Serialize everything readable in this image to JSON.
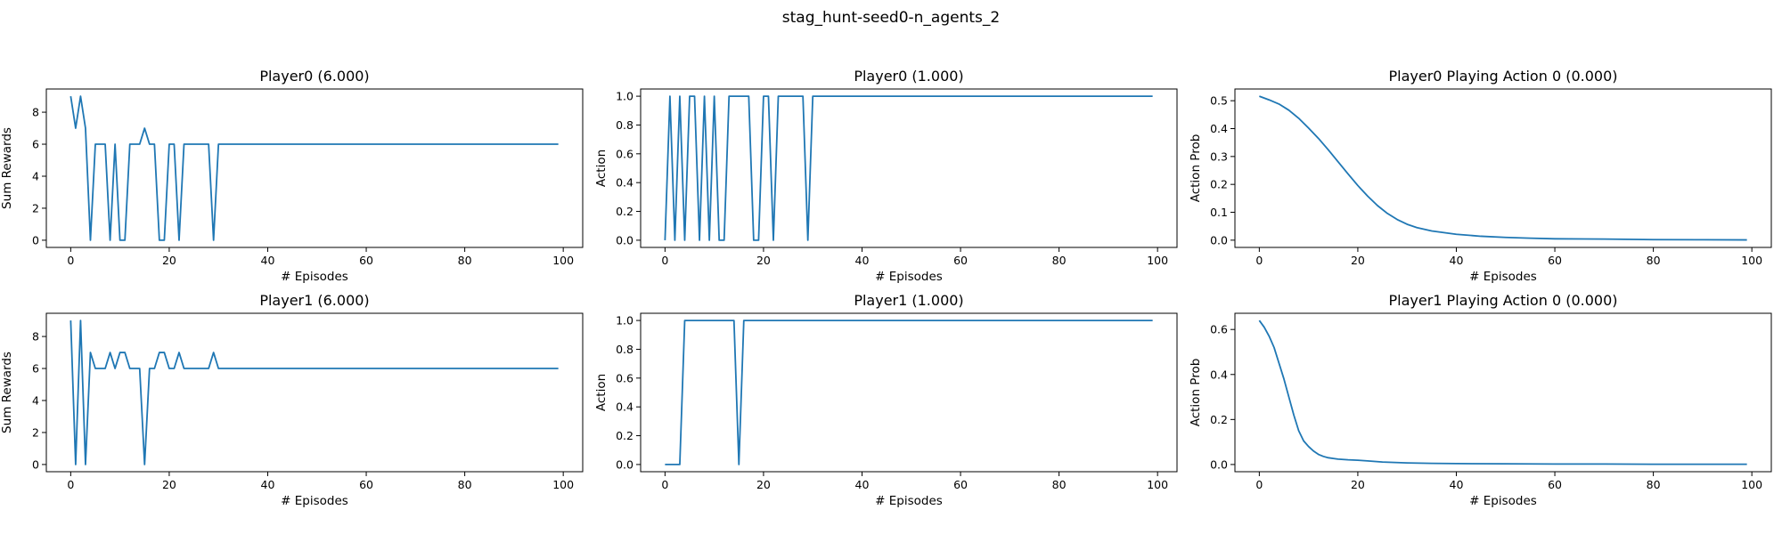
{
  "figure": {
    "suptitle": "stag_hunt-seed0-n_agents_2"
  },
  "chart_data": [
    {
      "type": "line",
      "title": "Player0 (6.000)",
      "xlabel": "# Episodes",
      "ylabel": "Sum Rewards",
      "xlim": [
        -4.95,
        103.95
      ],
      "ylim": [
        -0.45,
        9.45
      ],
      "xticks": [
        0,
        20,
        40,
        60,
        80,
        100
      ],
      "yticks": [
        0,
        2,
        4,
        6,
        8
      ],
      "xtick_labels": [
        "0",
        "20",
        "40",
        "60",
        "80",
        "100"
      ],
      "ytick_labels": [
        "0",
        "2",
        "4",
        "6",
        "8"
      ],
      "series": [
        {
          "x": [
            0,
            1,
            2,
            3,
            4,
            5,
            6,
            7,
            8,
            9,
            10,
            11,
            12,
            13,
            14,
            15,
            16,
            17,
            18,
            19,
            20,
            21,
            22,
            23,
            24,
            25,
            26,
            27,
            28,
            29,
            30,
            35,
            40,
            45,
            50,
            55,
            60,
            65,
            70,
            75,
            80,
            85,
            90,
            95,
            99
          ],
          "y": [
            9,
            7,
            9,
            7,
            0,
            6,
            6,
            6,
            0,
            6,
            0,
            0,
            6,
            6,
            6,
            7,
            6,
            6,
            0,
            0,
            6,
            6,
            0,
            6,
            6,
            6,
            6,
            6,
            6,
            0,
            6,
            6,
            6,
            6,
            6,
            6,
            6,
            6,
            6,
            6,
            6,
            6,
            6,
            6,
            6
          ]
        }
      ]
    },
    {
      "type": "line",
      "title": "Player0 (1.000)",
      "xlabel": "# Episodes",
      "ylabel": "Action",
      "xlim": [
        -4.95,
        103.95
      ],
      "ylim": [
        -0.05,
        1.05
      ],
      "xticks": [
        0,
        20,
        40,
        60,
        80,
        100
      ],
      "yticks": [
        0.0,
        0.2,
        0.4,
        0.6,
        0.8,
        1.0
      ],
      "xtick_labels": [
        "0",
        "20",
        "40",
        "60",
        "80",
        "100"
      ],
      "ytick_labels": [
        "0.0",
        "0.2",
        "0.4",
        "0.6",
        "0.8",
        "1.0"
      ],
      "series": [
        {
          "x": [
            0,
            1,
            2,
            3,
            4,
            5,
            6,
            7,
            8,
            9,
            10,
            11,
            12,
            13,
            14,
            15,
            16,
            17,
            18,
            19,
            20,
            21,
            22,
            23,
            24,
            25,
            26,
            27,
            28,
            29,
            30,
            35,
            40,
            45,
            50,
            55,
            60,
            65,
            70,
            75,
            80,
            85,
            90,
            95,
            99
          ],
          "y": [
            0,
            1,
            0,
            1,
            0,
            1,
            1,
            0,
            1,
            0,
            1,
            0,
            0,
            1,
            1,
            1,
            1,
            1,
            0,
            0,
            1,
            1,
            0,
            1,
            1,
            1,
            1,
            1,
            1,
            0,
            1,
            1,
            1,
            1,
            1,
            1,
            1,
            1,
            1,
            1,
            1,
            1,
            1,
            1,
            1
          ]
        }
      ]
    },
    {
      "type": "line",
      "title": "Player0 Playing Action 0 (0.000)",
      "xlabel": "# Episodes",
      "ylabel": "Action Prob",
      "xlim": [
        -4.95,
        103.95
      ],
      "ylim": [
        -0.026,
        0.542
      ],
      "xticks": [
        0,
        20,
        40,
        60,
        80,
        100
      ],
      "yticks": [
        0.0,
        0.1,
        0.2,
        0.3,
        0.4,
        0.5
      ],
      "xtick_labels": [
        "0",
        "20",
        "40",
        "60",
        "80",
        "100"
      ],
      "ytick_labels": [
        "0.0",
        "0.1",
        "0.2",
        "0.3",
        "0.4",
        "0.5"
      ],
      "series": [
        {
          "x": [
            0,
            2,
            4,
            6,
            8,
            10,
            12,
            14,
            16,
            18,
            20,
            22,
            24,
            26,
            28,
            30,
            32,
            35,
            40,
            45,
            50,
            55,
            60,
            70,
            80,
            90,
            99
          ],
          "y": [
            0.516,
            0.503,
            0.488,
            0.466,
            0.437,
            0.402,
            0.365,
            0.324,
            0.281,
            0.238,
            0.196,
            0.158,
            0.124,
            0.096,
            0.074,
            0.057,
            0.045,
            0.033,
            0.021,
            0.014,
            0.01,
            0.007,
            0.005,
            0.004,
            0.002,
            0.0015,
            0.001
          ]
        }
      ]
    },
    {
      "type": "line",
      "title": "Player1 (6.000)",
      "xlabel": "# Episodes",
      "ylabel": "Sum Rewards",
      "xlim": [
        -4.95,
        103.95
      ],
      "ylim": [
        -0.45,
        9.45
      ],
      "xticks": [
        0,
        20,
        40,
        60,
        80,
        100
      ],
      "yticks": [
        0,
        2,
        4,
        6,
        8
      ],
      "xtick_labels": [
        "0",
        "20",
        "40",
        "60",
        "80",
        "100"
      ],
      "ytick_labels": [
        "0",
        "2",
        "4",
        "6",
        "8"
      ],
      "series": [
        {
          "x": [
            0,
            1,
            2,
            3,
            4,
            5,
            6,
            7,
            8,
            9,
            10,
            11,
            12,
            13,
            14,
            15,
            16,
            17,
            18,
            19,
            20,
            21,
            22,
            23,
            24,
            25,
            26,
            27,
            28,
            29,
            30,
            35,
            40,
            45,
            50,
            55,
            60,
            65,
            70,
            75,
            80,
            85,
            90,
            95,
            99
          ],
          "y": [
            9,
            0,
            9,
            0,
            7,
            6,
            6,
            6,
            7,
            6,
            7,
            7,
            6,
            6,
            6,
            0,
            6,
            6,
            7,
            7,
            6,
            6,
            7,
            6,
            6,
            6,
            6,
            6,
            6,
            7,
            6,
            6,
            6,
            6,
            6,
            6,
            6,
            6,
            6,
            6,
            6,
            6,
            6,
            6,
            6
          ]
        }
      ]
    },
    {
      "type": "line",
      "title": "Player1 (1.000)",
      "xlabel": "# Episodes",
      "ylabel": "Action",
      "xlim": [
        -4.95,
        103.95
      ],
      "ylim": [
        -0.05,
        1.05
      ],
      "xticks": [
        0,
        20,
        40,
        60,
        80,
        100
      ],
      "yticks": [
        0.0,
        0.2,
        0.4,
        0.6,
        0.8,
        1.0
      ],
      "xtick_labels": [
        "0",
        "20",
        "40",
        "60",
        "80",
        "100"
      ],
      "ytick_labels": [
        "0.0",
        "0.2",
        "0.4",
        "0.6",
        "0.8",
        "1.0"
      ],
      "series": [
        {
          "x": [
            0,
            1,
            2,
            3,
            4,
            5,
            10,
            14,
            15,
            16,
            20,
            40,
            60,
            80,
            99
          ],
          "y": [
            0,
            0,
            0,
            0,
            1,
            1,
            1,
            1,
            0,
            1,
            1,
            1,
            1,
            1,
            1
          ]
        }
      ]
    },
    {
      "type": "line",
      "title": "Player1 Playing Action 0 (0.000)",
      "xlabel": "# Episodes",
      "ylabel": "Action Prob",
      "xlim": [
        -4.95,
        103.95
      ],
      "ylim": [
        -0.032,
        0.672
      ],
      "xticks": [
        0,
        20,
        40,
        60,
        80,
        100
      ],
      "yticks": [
        0.0,
        0.2,
        0.4,
        0.6
      ],
      "xtick_labels": [
        "0",
        "20",
        "40",
        "60",
        "80",
        "100"
      ],
      "ytick_labels": [
        "0.0",
        "0.2",
        "0.4",
        "0.6"
      ],
      "series": [
        {
          "x": [
            0,
            1,
            2,
            3,
            4,
            5,
            6,
            7,
            8,
            9,
            10,
            11,
            12,
            13,
            14,
            15,
            16,
            18,
            20,
            22,
            25,
            30,
            35,
            40,
            50,
            60,
            70,
            80,
            90,
            99
          ],
          "y": [
            0.64,
            0.61,
            0.57,
            0.52,
            0.45,
            0.38,
            0.3,
            0.22,
            0.15,
            0.105,
            0.08,
            0.06,
            0.045,
            0.036,
            0.03,
            0.027,
            0.024,
            0.021,
            0.019,
            0.016,
            0.011,
            0.007,
            0.005,
            0.004,
            0.003,
            0.002,
            0.002,
            0.001,
            0.001,
            0.001
          ]
        }
      ]
    }
  ]
}
